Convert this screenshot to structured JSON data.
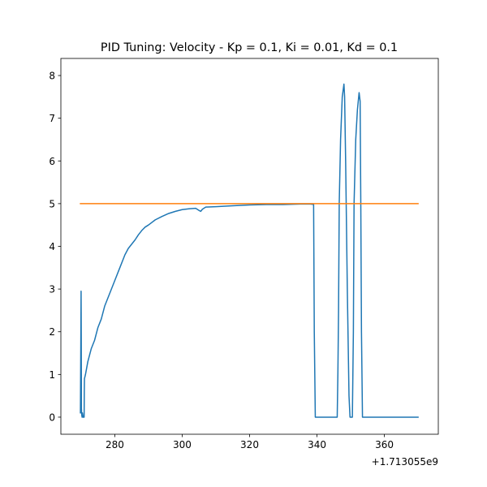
{
  "chart_data": {
    "type": "line",
    "title": "PID Tuning: Velocity - Kp = 0.1, Ki = 0.01, Kd = 0.1",
    "xlabel": "",
    "ylabel": "",
    "x_offset_label": "+1.713055e9",
    "xlim": [
      264,
      376
    ],
    "ylim": [
      -0.4,
      8.4
    ],
    "xticks": [
      280,
      300,
      320,
      340,
      360
    ],
    "yticks": [
      0,
      1,
      2,
      3,
      4,
      5,
      6,
      7,
      8
    ],
    "grid": false,
    "series": [
      {
        "color": "#1f77b4",
        "x": [
          269.8,
          269.9,
          270.0,
          270.05,
          270.1,
          270.2,
          270.3,
          270.4,
          270.6,
          270.9,
          270.95,
          271.0,
          271.3,
          272,
          273,
          274,
          275,
          276,
          277,
          278,
          279,
          280,
          281,
          282,
          283,
          284,
          285,
          286,
          287,
          288,
          289,
          290,
          292,
          294,
          296,
          298,
          300,
          302,
          304,
          305,
          305.5,
          306,
          307,
          310,
          315,
          320,
          325,
          330,
          335,
          338,
          339,
          339.2,
          339.5,
          340,
          346,
          346.2,
          346.4,
          346.6,
          347,
          347.5,
          348,
          348.2,
          348.5,
          349,
          349.5,
          349.8,
          350.0,
          350.5,
          350.8,
          351.0,
          351.5,
          352,
          352.5,
          352.8,
          353.0,
          353.2,
          353.5,
          355,
          360,
          365,
          370
        ],
        "values": [
          0.1,
          1.5,
          2.95,
          1.8,
          0.2,
          0.05,
          0.0,
          0.1,
          0.0,
          0.0,
          0.6,
          0.9,
          1.0,
          1.3,
          1.6,
          1.8,
          2.1,
          2.3,
          2.6,
          2.8,
          3.0,
          3.2,
          3.4,
          3.6,
          3.8,
          3.95,
          4.05,
          4.15,
          4.27,
          4.37,
          4.45,
          4.5,
          4.62,
          4.7,
          4.77,
          4.82,
          4.86,
          4.88,
          4.89,
          4.84,
          4.82,
          4.87,
          4.92,
          4.93,
          4.95,
          4.97,
          4.98,
          4.98,
          4.99,
          4.99,
          4.98,
          2.0,
          0.0,
          0.0,
          0.0,
          1.0,
          2.5,
          5.0,
          6.5,
          7.5,
          7.8,
          7.5,
          6.0,
          3.0,
          0.5,
          0.0,
          0.0,
          0.0,
          2.0,
          5.0,
          6.5,
          7.2,
          7.6,
          7.4,
          5.0,
          2.0,
          0.0,
          0.0,
          0.0,
          0.0,
          0.0
        ]
      },
      {
        "color": "#ff7f0e",
        "x": [
          269.8,
          370
        ],
        "values": [
          5.0,
          5.0
        ]
      }
    ],
    "legend": "none"
  }
}
